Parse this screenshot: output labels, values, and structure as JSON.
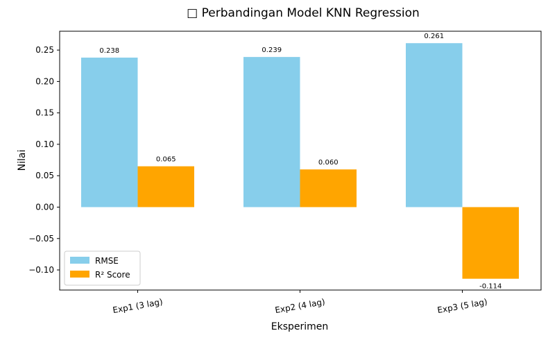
{
  "chart_data": {
    "type": "bar",
    "title": "□ Perbandingan Model KNN Regression",
    "xlabel": "Eksperimen",
    "ylabel": "Nilai",
    "categories": [
      "Exp1 (3 lag)",
      "Exp2 (4 lag)",
      "Exp3 (5 lag)"
    ],
    "series": [
      {
        "name": "RMSE",
        "values": [
          0.238,
          0.239,
          0.261
        ],
        "labels": [
          "0.238",
          "0.239",
          "0.261"
        ],
        "color": "#87ceeb"
      },
      {
        "name": "R² Score",
        "values": [
          0.065,
          0.06,
          -0.114
        ],
        "labels": [
          "0.065",
          "0.060",
          "-0.114"
        ],
        "color": "#ffa500"
      }
    ],
    "ylim": [
      -0.132,
      0.28
    ],
    "yticks": [
      -0.1,
      -0.05,
      0.0,
      0.05,
      0.1,
      0.15,
      0.2,
      0.25
    ],
    "ytick_labels": [
      "−0.10",
      "−0.05",
      "0.00",
      "0.05",
      "0.10",
      "0.15",
      "0.20",
      "0.25"
    ],
    "grid": false,
    "legend_position": "lower-left"
  }
}
